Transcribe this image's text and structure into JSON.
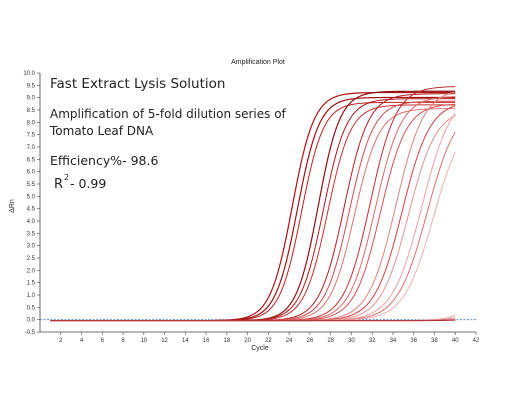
{
  "chart_data": {
    "type": "line",
    "title": "Amplification Plot",
    "xlabel": "Cycle",
    "ylabel": "ΔRn",
    "xlim": [
      0,
      42
    ],
    "ylim": [
      -0.5,
      10.0
    ],
    "xticks": [
      2,
      4,
      6,
      8,
      10,
      12,
      14,
      16,
      18,
      20,
      22,
      24,
      26,
      28,
      30,
      32,
      34,
      36,
      38,
      40,
      42
    ],
    "yticks": [
      -0.5,
      0.0,
      0.5,
      1.0,
      1.5,
      2.0,
      2.5,
      3.0,
      3.5,
      4.0,
      4.5,
      5.0,
      5.5,
      6.0,
      6.5,
      7.0,
      7.5,
      8.0,
      8.5,
      9.0,
      9.5,
      10.0
    ],
    "xtick_labels": [
      "2",
      "4",
      "6",
      "8",
      "10",
      "12",
      "14",
      "16",
      "18",
      "20",
      "22",
      "24",
      "26",
      "28",
      "30",
      "32",
      "34",
      "36",
      "38",
      "40",
      "42"
    ],
    "ytick_labels": [
      "-0.5",
      "0.0",
      "0.5",
      "1.0",
      "1.5",
      "2.0",
      "2.5",
      "3.0",
      "3.5",
      "4.0",
      "4.5",
      "5.0",
      "5.5",
      "6.0",
      "6.5",
      "7.0",
      "7.5",
      "8.0",
      "8.5",
      "9.0",
      "9.5",
      "10.0"
    ],
    "threshold": 0.0,
    "grid": false,
    "x_range": [
      1,
      40
    ],
    "annotations": [
      "Fast Extract Lysis Solution",
      "Amplification of 5-fold dilution series of",
      "Tomato Leaf DNA",
      "Efficiency%- 98.6",
      "R",
      "2",
      "- 0.99"
    ],
    "series": [
      {
        "midpoint": 24.3,
        "plateau": 9.25,
        "slope": 0.95,
        "color": "#b01010",
        "width": 1.2
      },
      {
        "midpoint": 24.8,
        "plateau": 9.05,
        "slope": 0.95,
        "color": "#a01010",
        "width": 1.2
      },
      {
        "midpoint": 25.2,
        "plateau": 8.85,
        "slope": 0.95,
        "color": "#c02020",
        "width": 1.0
      },
      {
        "midpoint": 26.8,
        "plateau": 9.3,
        "slope": 0.95,
        "color": "#8e0f0f",
        "width": 1.2
      },
      {
        "midpoint": 27.3,
        "plateau": 9.0,
        "slope": 0.9,
        "color": "#b01818",
        "width": 1.0
      },
      {
        "midpoint": 27.7,
        "plateau": 8.75,
        "slope": 0.9,
        "color": "#c83030",
        "width": 1.0
      },
      {
        "midpoint": 29.3,
        "plateau": 9.2,
        "slope": 0.85,
        "color": "#b02020",
        "width": 1.0
      },
      {
        "midpoint": 29.8,
        "plateau": 8.9,
        "slope": 0.85,
        "color": "#d04a4a",
        "width": 1.0
      },
      {
        "midpoint": 30.3,
        "plateau": 8.6,
        "slope": 0.85,
        "color": "#e07070",
        "width": 1.0
      },
      {
        "midpoint": 31.8,
        "plateau": 9.5,
        "slope": 0.8,
        "color": "#c03030",
        "width": 1.0
      },
      {
        "midpoint": 32.3,
        "plateau": 9.1,
        "slope": 0.8,
        "color": "#e06a6a",
        "width": 1.0
      },
      {
        "midpoint": 32.8,
        "plateau": 8.8,
        "slope": 0.8,
        "color": "#d85050",
        "width": 1.0
      },
      {
        "midpoint": 34.3,
        "plateau": 9.4,
        "slope": 0.75,
        "color": "#e08080",
        "width": 1.0
      },
      {
        "midpoint": 34.9,
        "plateau": 8.9,
        "slope": 0.75,
        "color": "#d04040",
        "width": 1.0
      },
      {
        "midpoint": 35.5,
        "plateau": 8.6,
        "slope": 0.75,
        "color": "#e89090",
        "width": 1.0
      },
      {
        "midpoint": 36.8,
        "plateau": 9.3,
        "slope": 0.7,
        "color": "#f0a0a0",
        "width": 1.0
      },
      {
        "midpoint": 37.3,
        "plateau": 8.8,
        "slope": 0.7,
        "color": "#e07070",
        "width": 1.0
      },
      {
        "midpoint": 37.9,
        "plateau": 8.4,
        "slope": 0.7,
        "color": "#f0b0b0",
        "width": 1.0
      },
      {
        "midpoint": 44.5,
        "plateau": 8.5,
        "slope": 0.8,
        "color": "#f0a8a8",
        "width": 1.0
      },
      {
        "midpoint": 45.3,
        "plateau": 8.5,
        "slope": 0.8,
        "color": "#e08080",
        "width": 1.0
      },
      {
        "midpoint": 46.5,
        "plateau": 8.5,
        "slope": 0.8,
        "color": "#d06060",
        "width": 1.0
      },
      {
        "midpoint": 48.0,
        "plateau": 8.5,
        "slope": 0.75,
        "color": "#b03030",
        "width": 1.0
      }
    ],
    "colors": {
      "axis": "#444444",
      "threshold": "#3b7ddd",
      "text": "#222222"
    }
  }
}
